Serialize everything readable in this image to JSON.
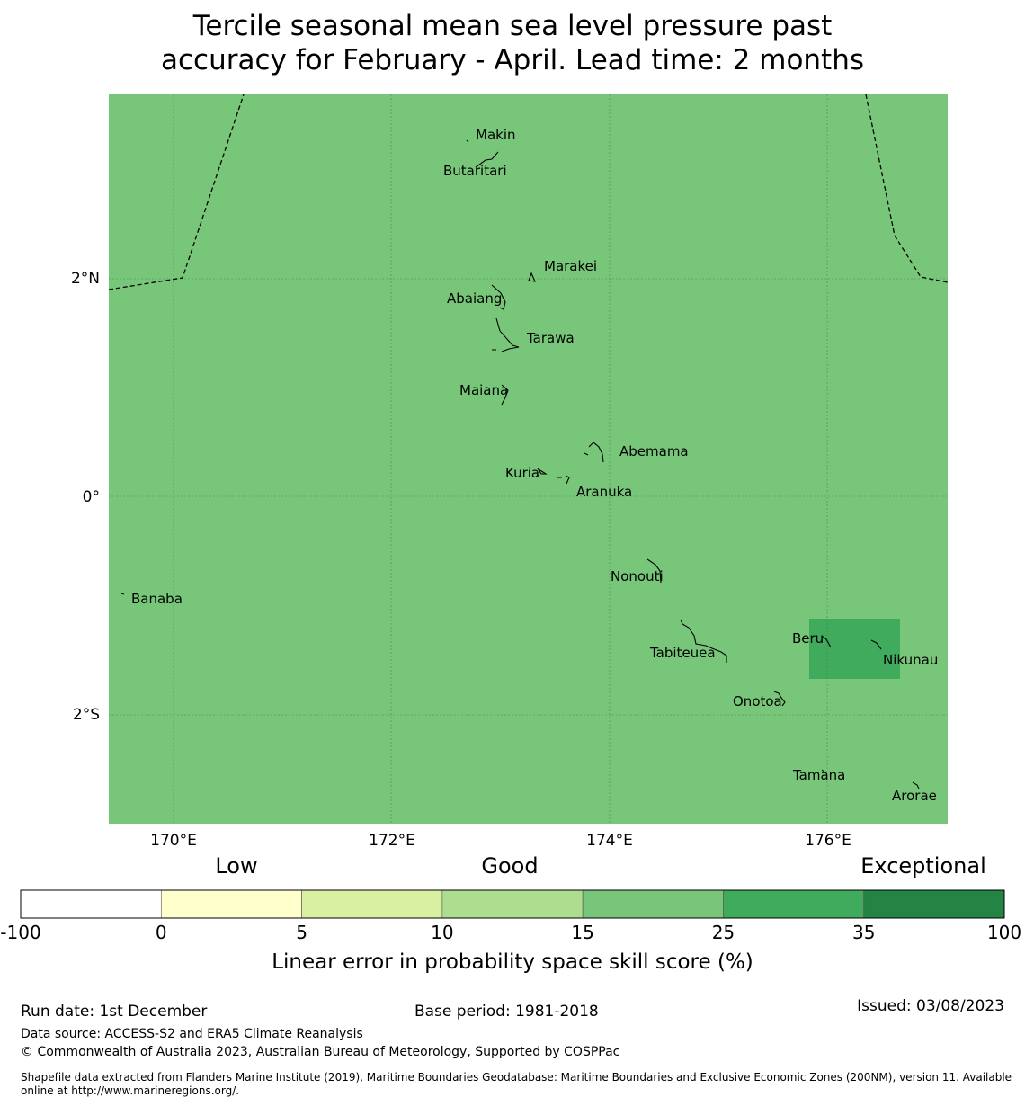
{
  "title": {
    "line1": "Tercile seasonal mean sea level pressure past",
    "line2": "accuracy for February - April. Lead time: 2 months"
  },
  "map": {
    "fill_color": "#78c679",
    "highlight_color": "#41ab5d",
    "lon_labels": [
      "170°E",
      "172°E",
      "174°E",
      "176°E"
    ],
    "lat_labels": [
      "2°N",
      "0°",
      "2°S"
    ],
    "places": [
      {
        "id": "makin",
        "name": "Makin"
      },
      {
        "id": "butaritari",
        "name": "Butaritari"
      },
      {
        "id": "marakei",
        "name": "Marakei"
      },
      {
        "id": "abaiang",
        "name": "Abaiang"
      },
      {
        "id": "tarawa",
        "name": "Tarawa"
      },
      {
        "id": "maiana",
        "name": "Maiana"
      },
      {
        "id": "abemama",
        "name": "Abemama"
      },
      {
        "id": "kuria",
        "name": "Kuria"
      },
      {
        "id": "aranuka",
        "name": "Aranuka"
      },
      {
        "id": "nonouti",
        "name": "Nonouti"
      },
      {
        "id": "banaba",
        "name": "Banaba"
      },
      {
        "id": "beru",
        "name": "Beru"
      },
      {
        "id": "nikunau",
        "name": "Nikunau"
      },
      {
        "id": "tabiteuea",
        "name": "Tabiteuea"
      },
      {
        "id": "onotoa",
        "name": "Onotoa"
      },
      {
        "id": "tamana",
        "name": "Tamana"
      },
      {
        "id": "arorae",
        "name": "Arorae"
      }
    ]
  },
  "legend": {
    "category_labels": [
      "Low",
      "Good",
      "Exceptional"
    ],
    "ticks": [
      "-100",
      "0",
      "5",
      "10",
      "15",
      "25",
      "35",
      "100"
    ],
    "colors": [
      "#ffffff",
      "#ffffcc",
      "#d9f0a3",
      "#addd8e",
      "#78c679",
      "#41ab5d",
      "#238443"
    ],
    "axis_label": "Linear error in probability space skill score (%)"
  },
  "footer": {
    "run_date": "Run date: 1st December",
    "base_period": "Base period: 1981-2018",
    "issued": "Issued: 03/08/2023",
    "data_source": "Data source: ACCESS-S2 and ERA5 Climate Reanalysis",
    "copyright": "© Commonwealth of Australia 2023, Australian Bureau of Meteorology, Supported by COSPPac",
    "shapefile": "Shapefile data extracted from Flanders Marine Institute (2019), Maritime Boundaries Geodatabase: Maritime Boundaries and Exclusive Economic Zones (200NM), version 11. Available online at http://www.marineregions.org/."
  }
}
